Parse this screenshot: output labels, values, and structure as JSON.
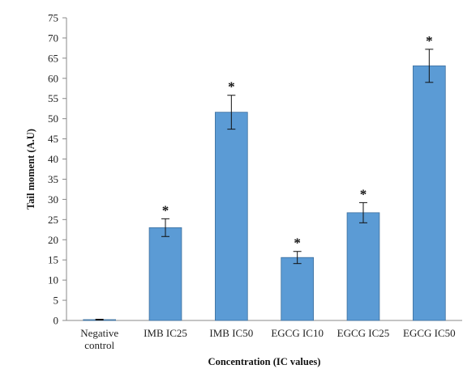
{
  "chart_data": {
    "type": "bar",
    "title": "",
    "xlabel": "Concentration (IC values)",
    "ylabel": "Tail moment (A.U)",
    "ylim": [
      0,
      75
    ],
    "yticks": [
      0,
      5,
      10,
      15,
      20,
      25,
      30,
      35,
      40,
      45,
      50,
      55,
      60,
      65,
      70,
      75
    ],
    "categories": [
      [
        "Negative",
        "control"
      ],
      [
        "IMB IC25"
      ],
      [
        "IMB IC50"
      ],
      [
        "EGCG IC10"
      ],
      [
        "EGCG IC25"
      ],
      [
        "EGCG IC50"
      ]
    ],
    "values": [
      0.2,
      23.0,
      51.6,
      15.6,
      26.7,
      63.1
    ],
    "errors": [
      0.1,
      2.2,
      4.2,
      1.5,
      2.5,
      4.1
    ],
    "significance": [
      "",
      "*",
      "*",
      "*",
      "*",
      "*"
    ],
    "bar_color": "#5b9bd5",
    "bar_edge_color": "#3d6f9e",
    "grid": false,
    "legend": "none"
  }
}
